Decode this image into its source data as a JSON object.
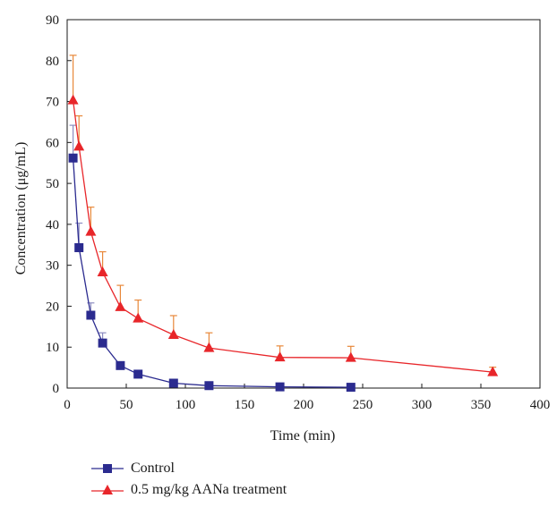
{
  "chart_data": {
    "type": "line",
    "title": "",
    "xlabel": "Time (min)",
    "ylabel": "Concentration (μg/mL)",
    "xlim": [
      0,
      400
    ],
    "ylim": [
      0,
      90
    ],
    "xticks": [
      0,
      50,
      100,
      150,
      200,
      250,
      300,
      350,
      400
    ],
    "yticks": [
      0,
      10,
      20,
      30,
      40,
      50,
      60,
      70,
      80,
      90
    ],
    "grid": false,
    "legend_position": "bottom-left",
    "series": [
      {
        "name": "Control",
        "color": "#2b2b8f",
        "errorbar_color": "#8c8cc0",
        "marker": "square",
        "x": [
          5,
          10,
          20,
          30,
          45,
          60,
          90,
          120,
          180,
          240
        ],
        "y": [
          56.2,
          34.3,
          17.8,
          11.0,
          5.5,
          3.4,
          1.2,
          0.6,
          0.3,
          0.2
        ],
        "error": [
          8.0,
          6.0,
          3.0,
          2.5,
          0,
          0,
          0,
          0,
          0,
          0
        ]
      },
      {
        "name": "0.5 mg/kg AANa treatment",
        "color": "#e8262a",
        "errorbar_color": "#e8883a",
        "marker": "triangle",
        "x": [
          5,
          10,
          20,
          30,
          45,
          60,
          90,
          120,
          180,
          240,
          360
        ],
        "y": [
          70.3,
          59.0,
          38.2,
          28.3,
          19.8,
          17.0,
          13.0,
          9.8,
          7.5,
          7.4,
          3.9
        ],
        "error": [
          11.0,
          7.5,
          6.0,
          5.0,
          5.3,
          4.5,
          4.7,
          3.7,
          2.8,
          2.8,
          1.2
        ]
      }
    ]
  }
}
